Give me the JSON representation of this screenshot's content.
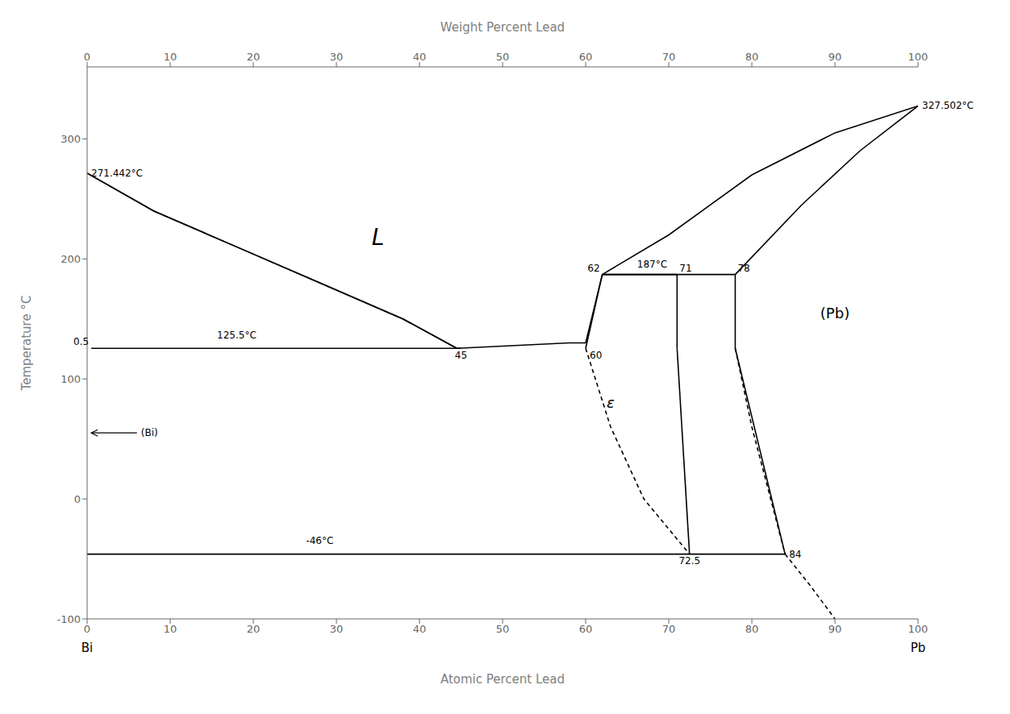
{
  "chart_data": {
    "type": "line",
    "x_label": "Atomic Percent Lead",
    "x2_label": "Weight Percent Lead",
    "y_label": "Temperature °C",
    "xlim": [
      0,
      100
    ],
    "ylim": [
      -100,
      360
    ],
    "xticks": [
      0,
      10,
      20,
      30,
      40,
      50,
      60,
      70,
      80,
      90,
      100
    ],
    "x2ticks": [
      0,
      10,
      20,
      30,
      40,
      50,
      60,
      70,
      80,
      90,
      100
    ],
    "yticks": [
      -100,
      0,
      100,
      200,
      300
    ],
    "grid": false,
    "color": "#000000",
    "series": [
      {
        "x": [
          0,
          8,
          18,
          28,
          38,
          44.5
        ],
        "values": [
          271.442,
          240,
          210,
          180,
          150,
          125.5
        ],
        "line_style": "solid"
      },
      {
        "x": [
          44.5,
          52,
          58,
          60
        ],
        "values": [
          125.5,
          128,
          130,
          130
        ],
        "line_style": "solid"
      },
      {
        "x": [
          60,
          62
        ],
        "values": [
          130,
          187
        ],
        "line_style": "solid"
      },
      {
        "x": [
          62,
          78
        ],
        "values": [
          187,
          187
        ],
        "line_style": "solid"
      },
      {
        "x": [
          62,
          70,
          80,
          90,
          100
        ],
        "values": [
          187,
          220,
          270,
          305,
          327.502
        ],
        "line_style": "solid"
      },
      {
        "x": [
          78,
          86,
          93,
          100
        ],
        "values": [
          187,
          245,
          290,
          327.502
        ],
        "line_style": "solid"
      },
      {
        "x": [
          0.5,
          45
        ],
        "values": [
          125.5,
          125.5
        ],
        "line_style": "solid"
      },
      {
        "x": [
          0,
          72.5
        ],
        "values": [
          -46,
          -46
        ],
        "line_style": "solid"
      },
      {
        "x": [
          72.5,
          84
        ],
        "values": [
          -46,
          -46
        ],
        "line_style": "solid"
      },
      {
        "x": [
          60,
          62
        ],
        "values": [
          125.5,
          187
        ],
        "line_style": "solid"
      },
      {
        "x": [
          62,
          71
        ],
        "values": [
          187,
          187
        ],
        "line_style": "solid"
      },
      {
        "x": [
          71,
          71
        ],
        "values": [
          187,
          125.5
        ],
        "line_style": "solid"
      },
      {
        "x": [
          71,
          72.5
        ],
        "values": [
          125.5,
          -46
        ],
        "line_style": "solid"
      },
      {
        "x": [
          60,
          63,
          67,
          72.5
        ],
        "values": [
          125.5,
          60,
          0,
          -46
        ],
        "line_style": "dashed"
      },
      {
        "x": [
          78,
          78
        ],
        "values": [
          187,
          125.5
        ],
        "line_style": "solid"
      },
      {
        "x": [
          78,
          84
        ],
        "values": [
          125.5,
          -46
        ],
        "line_style": "solid"
      },
      {
        "x": [
          78,
          80,
          84
        ],
        "values": [
          125.5,
          60,
          -46
        ],
        "line_style": "dashed"
      },
      {
        "x": [
          84,
          87,
          90
        ],
        "values": [
          -46,
          -72,
          -100
        ],
        "line_style": "dashed"
      }
    ],
    "annotations": [
      {
        "text": "125.5°C",
        "x": 18,
        "y": 131,
        "position": "above"
      },
      {
        "text": "-46°C",
        "x": 28,
        "y": -40,
        "position": "above"
      },
      {
        "text": "187°C",
        "x": 68,
        "y": 190,
        "position": "above"
      },
      {
        "text": "271.442°C",
        "x": 0,
        "y": 271.442,
        "position": "right"
      },
      {
        "text": "327.502°C",
        "x": 100,
        "y": 327.502,
        "position": "right"
      },
      {
        "text": "0.5",
        "x": 0.5,
        "y": 125.5,
        "position": "above-left"
      },
      {
        "text": "45",
        "x": 45,
        "y": 125.5,
        "position": "below"
      },
      {
        "text": "60",
        "x": 60,
        "y": 125.5,
        "position": "below-right"
      },
      {
        "text": "62",
        "x": 62,
        "y": 187,
        "position": "above-left"
      },
      {
        "text": "71",
        "x": 71,
        "y": 187,
        "position": "above-right"
      },
      {
        "text": "78",
        "x": 78,
        "y": 187,
        "position": "above-right"
      },
      {
        "text": "72.5",
        "x": 72.5,
        "y": -46,
        "position": "below"
      },
      {
        "text": "84",
        "x": 84,
        "y": -46,
        "position": "right"
      },
      {
        "text": "(Bi)",
        "x": 6,
        "y": 55,
        "position": "right",
        "arrow_to": [
          0.5,
          55
        ]
      }
    ],
    "region_labels": [
      {
        "text": "L",
        "x": 35,
        "y": 218
      },
      {
        "text": "ε",
        "x": 63,
        "y": 80
      },
      {
        "text": "(Pb)",
        "x": 90,
        "y": 155
      }
    ],
    "end_labels": [
      "Bi",
      "Pb"
    ]
  }
}
